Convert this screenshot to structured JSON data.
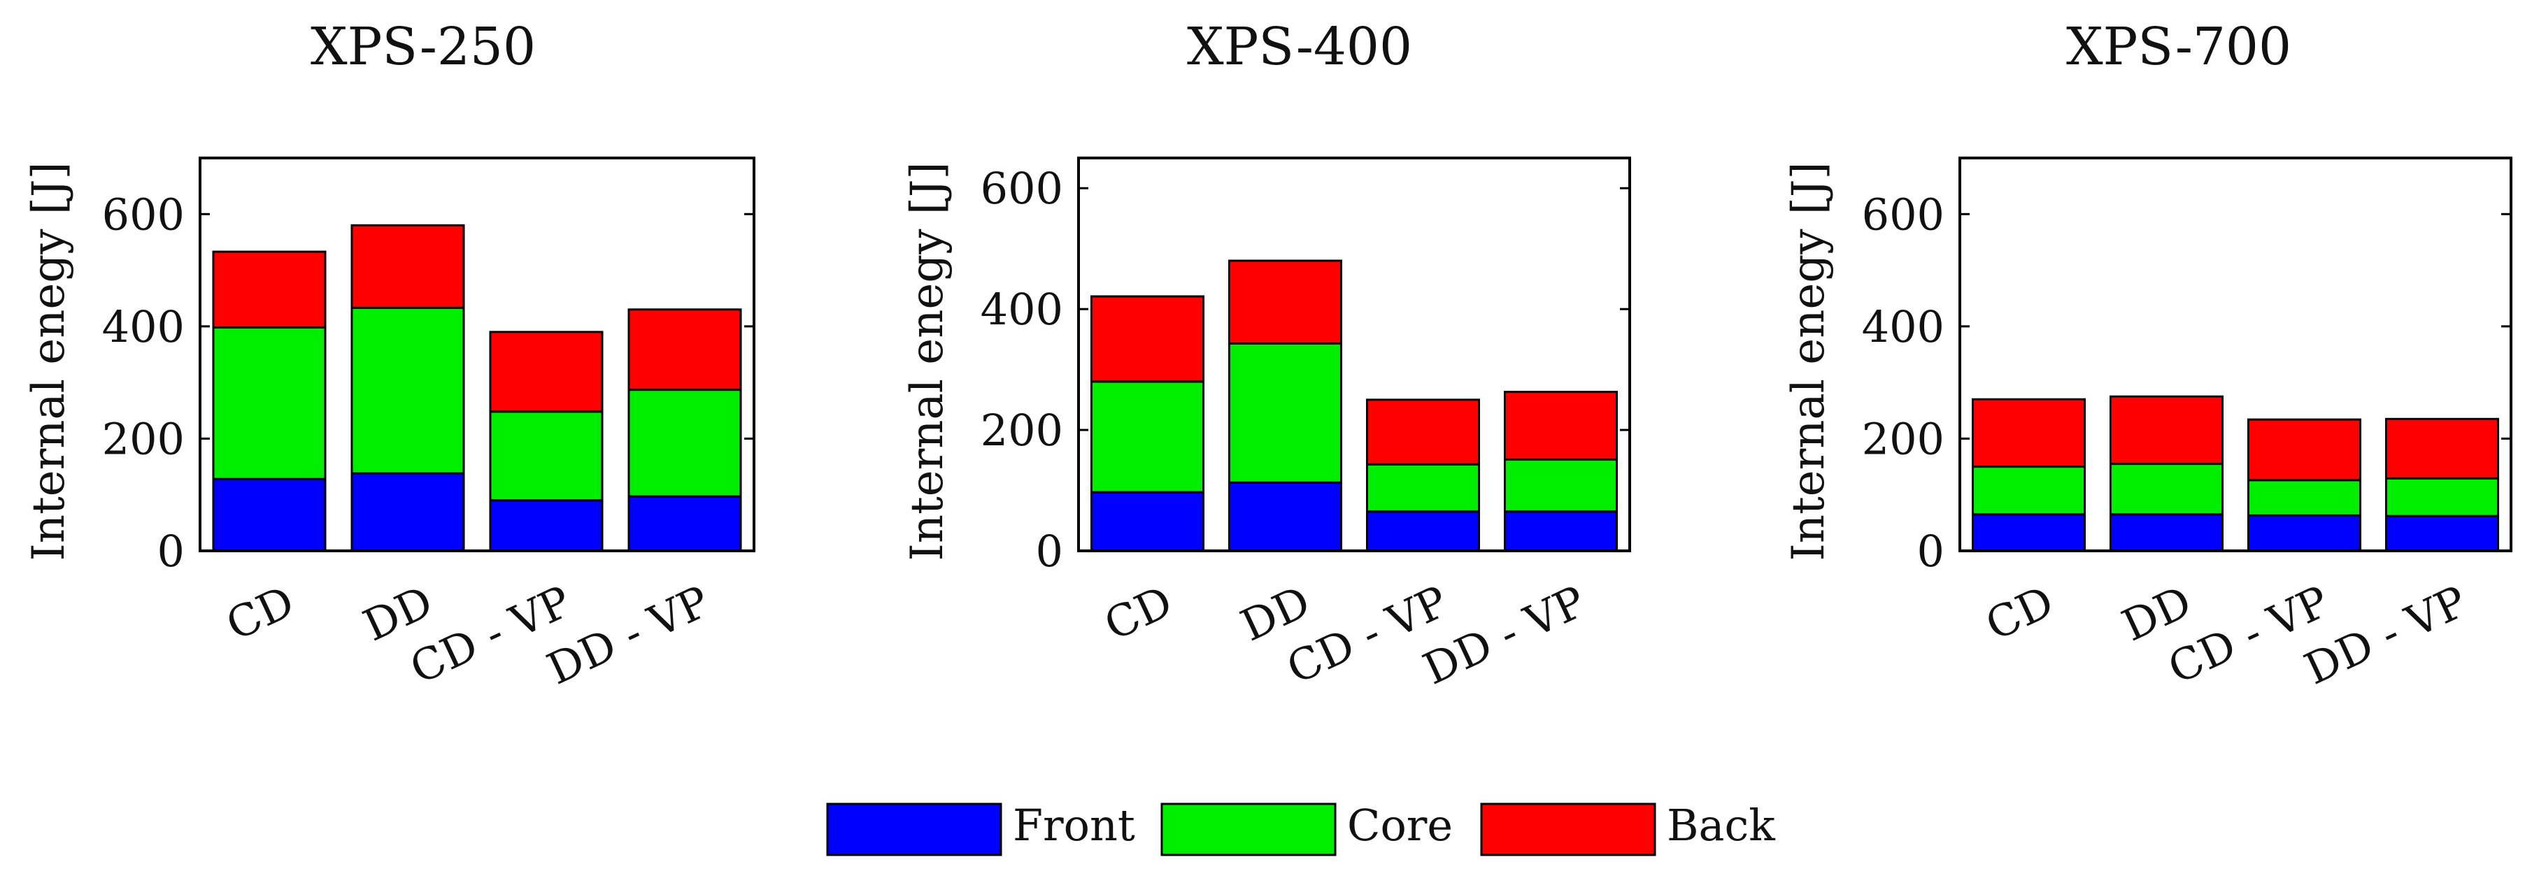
{
  "chart_data": [
    {
      "type": "bar",
      "stacked": true,
      "title": "XPS-250",
      "xlabel": "",
      "ylabel": "Internal enegy [J]",
      "categories": [
        "CD",
        "DD",
        "CD - VP",
        "DD - VP"
      ],
      "ylim": [
        0,
        700
      ],
      "yticks": [
        0,
        200,
        400,
        600
      ],
      "series": [
        {
          "name": "Front",
          "values": [
            128,
            138,
            90,
            97
          ]
        },
        {
          "name": "Core",
          "values": [
            270,
            295,
            158,
            190
          ]
        },
        {
          "name": "Back",
          "values": [
            135,
            147,
            142,
            143
          ]
        }
      ]
    },
    {
      "type": "bar",
      "stacked": true,
      "title": "XPS-400",
      "xlabel": "",
      "ylabel": "Internal enegy [J]",
      "categories": [
        "CD",
        "DD",
        "CD - VP",
        "DD - VP"
      ],
      "ylim": [
        0,
        650
      ],
      "yticks": [
        0,
        200,
        400,
        600
      ],
      "series": [
        {
          "name": "Front",
          "values": [
            97,
            113,
            65,
            65
          ]
        },
        {
          "name": "Core",
          "values": [
            183,
            230,
            78,
            86
          ]
        },
        {
          "name": "Back",
          "values": [
            141,
            137,
            107,
            112
          ]
        }
      ]
    },
    {
      "type": "bar",
      "stacked": true,
      "title": "XPS-700",
      "xlabel": "",
      "ylabel": "Internal enegy [J]",
      "categories": [
        "CD",
        "DD",
        "CD - VP",
        "DD - VP"
      ],
      "ylim": [
        0,
        700
      ],
      "yticks": [
        0,
        200,
        400,
        600
      ],
      "series": [
        {
          "name": "Front",
          "values": [
            65,
            65,
            63,
            62
          ]
        },
        {
          "name": "Core",
          "values": [
            85,
            90,
            63,
            67
          ]
        },
        {
          "name": "Back",
          "values": [
            120,
            120,
            108,
            106
          ]
        }
      ]
    }
  ],
  "legend": {
    "placement": "bottom-center",
    "entries": [
      {
        "label": "Front",
        "color": "#0000ff"
      },
      {
        "label": "Core",
        "color": "#00ee00"
      },
      {
        "label": "Back",
        "color": "#ff0000"
      }
    ]
  }
}
